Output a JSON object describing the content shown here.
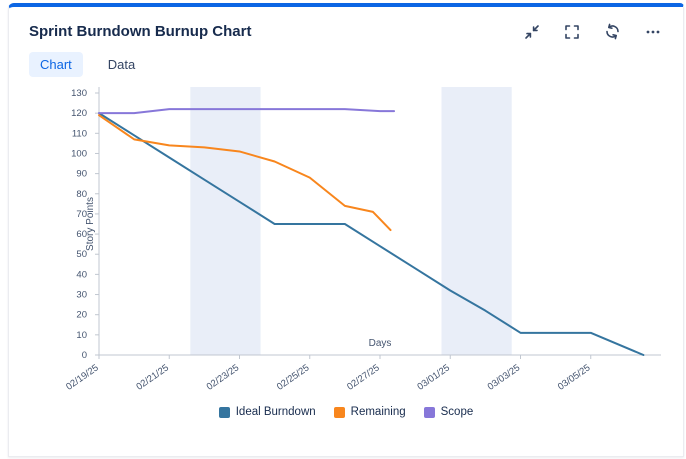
{
  "card": {
    "title": "Sprint Burndown Burnup Chart",
    "accent_color": "#0c66e4",
    "icons": [
      {
        "name": "collapse-icon"
      },
      {
        "name": "fullscreen-icon"
      },
      {
        "name": "refresh-icon"
      },
      {
        "name": "more-icon"
      }
    ]
  },
  "tabs": [
    {
      "label": "Chart",
      "active": true
    },
    {
      "label": "Data",
      "active": false
    }
  ],
  "chart_data": {
    "type": "line",
    "title": "Sprint Burndown Burnup Chart",
    "xlabel": "Days",
    "ylabel": "Story Points",
    "ylim": [
      0,
      130
    ],
    "ytick_step": 10,
    "x_domain_days": [
      0,
      16
    ],
    "band_color": "#e9eef8",
    "axis_color": "#c1c7d0",
    "legend_position": "bottom",
    "x_ticks": [
      {
        "day": 0,
        "label": "02/19/25"
      },
      {
        "day": 2,
        "label": "02/21/25"
      },
      {
        "day": 4,
        "label": "02/23/25"
      },
      {
        "day": 6,
        "label": "02/25/25"
      },
      {
        "day": 8,
        "label": "02/27/25"
      },
      {
        "day": 10,
        "label": "03/01/25"
      },
      {
        "day": 12,
        "label": "03/03/25"
      },
      {
        "day": 14,
        "label": "03/05/25"
      }
    ],
    "weekend_bands": [
      {
        "from": 2.6,
        "to": 4.6
      },
      {
        "from": 9.75,
        "to": 11.75
      }
    ],
    "series": [
      {
        "name": "Ideal Burndown",
        "color": "#35759f",
        "x": [
          0,
          1,
          2,
          3,
          4,
          5,
          6,
          7,
          8,
          9,
          10,
          11,
          12,
          13,
          14,
          15.5
        ],
        "y": [
          120,
          109,
          98,
          87,
          76,
          65,
          65,
          65,
          54,
          43,
          32,
          22,
          11,
          11,
          11,
          0
        ]
      },
      {
        "name": "Remaining",
        "color": "#f8861d",
        "x": [
          0,
          1,
          2,
          3,
          4,
          5,
          6,
          7,
          7.8,
          8.3
        ],
        "y": [
          119,
          107,
          104,
          103,
          101,
          96,
          88,
          74,
          71,
          62
        ]
      },
      {
        "name": "Scope",
        "color": "#8777d9",
        "x": [
          0,
          1,
          2,
          3,
          4,
          5,
          6,
          7,
          8,
          8.4
        ],
        "y": [
          120,
          120,
          122,
          122,
          122,
          122,
          122,
          122,
          121,
          121
        ]
      }
    ]
  }
}
